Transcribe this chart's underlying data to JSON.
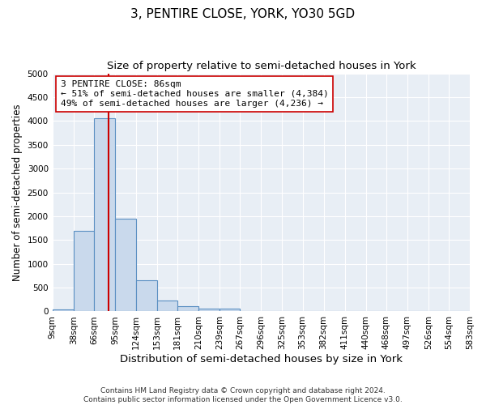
{
  "title": "3, PENTIRE CLOSE, YORK, YO30 5GD",
  "subtitle": "Size of property relative to semi-detached houses in York",
  "xlabel": "Distribution of semi-detached houses by size in York",
  "ylabel": "Number of semi-detached properties",
  "bar_color": "#c9d9ec",
  "bar_edge_color": "#5a8fc2",
  "background_color": "#e8eef5",
  "grid_color": "#ffffff",
  "bin_edges": [
    9,
    38,
    66,
    95,
    124,
    153,
    181,
    210,
    239,
    267,
    296,
    325,
    353,
    382,
    411,
    440,
    468,
    497,
    526,
    554,
    583
  ],
  "bin_heights": [
    50,
    1700,
    4050,
    1950,
    650,
    230,
    110,
    65,
    65,
    0,
    0,
    0,
    0,
    0,
    0,
    0,
    0,
    0,
    0,
    0
  ],
  "tick_labels": [
    "9sqm",
    "38sqm",
    "66sqm",
    "95sqm",
    "124sqm",
    "153sqm",
    "181sqm",
    "210sqm",
    "239sqm",
    "267sqm",
    "296sqm",
    "325sqm",
    "353sqm",
    "382sqm",
    "411sqm",
    "440sqm",
    "468sqm",
    "497sqm",
    "526sqm",
    "554sqm",
    "583sqm"
  ],
  "property_size": 86,
  "red_line_color": "#cc0000",
  "annotation_line1": "3 PENTIRE CLOSE: 86sqm",
  "annotation_line2": "← 51% of semi-detached houses are smaller (4,384)",
  "annotation_line3": "49% of semi-detached houses are larger (4,236) →",
  "annotation_box_color": "#ffffff",
  "annotation_box_edge": "#cc0000",
  "ylim": [
    0,
    5000
  ],
  "yticks": [
    0,
    500,
    1000,
    1500,
    2000,
    2500,
    3000,
    3500,
    4000,
    4500,
    5000
  ],
  "footer_line1": "Contains HM Land Registry data © Crown copyright and database right 2024.",
  "footer_line2": "Contains public sector information licensed under the Open Government Licence v3.0.",
  "title_fontsize": 11,
  "subtitle_fontsize": 9.5,
  "xlabel_fontsize": 9.5,
  "ylabel_fontsize": 8.5,
  "tick_fontsize": 7.5,
  "annotation_fontsize": 8,
  "footer_fontsize": 6.5
}
